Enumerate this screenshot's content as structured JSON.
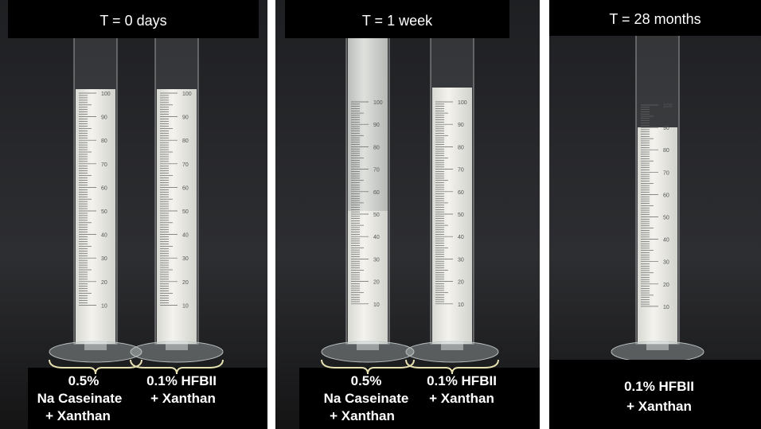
{
  "panels": [
    {
      "title": "T = 0 days",
      "samples": [
        {
          "label_lines": [
            "0.5%",
            "Na Caseinate",
            "+ Xanthan"
          ]
        },
        {
          "label_lines": [
            "0.1% HFBII",
            "+ Xanthan"
          ]
        }
      ]
    },
    {
      "title": "T = 1 week",
      "samples": [
        {
          "label_lines": [
            "0.5%",
            "Na Caseinate",
            "+ Xanthan"
          ]
        },
        {
          "label_lines": [
            "0.1% HFBII",
            "+ Xanthan"
          ]
        }
      ]
    },
    {
      "title": "T = 28 months",
      "samples": [
        {
          "label_lines": [
            "0.1% HFBII",
            "+ Xanthan"
          ]
        }
      ]
    }
  ],
  "graduation_labels": [
    "100",
    "90",
    "80",
    "70",
    "60",
    "50",
    "40",
    "30",
    "20",
    "10"
  ]
}
